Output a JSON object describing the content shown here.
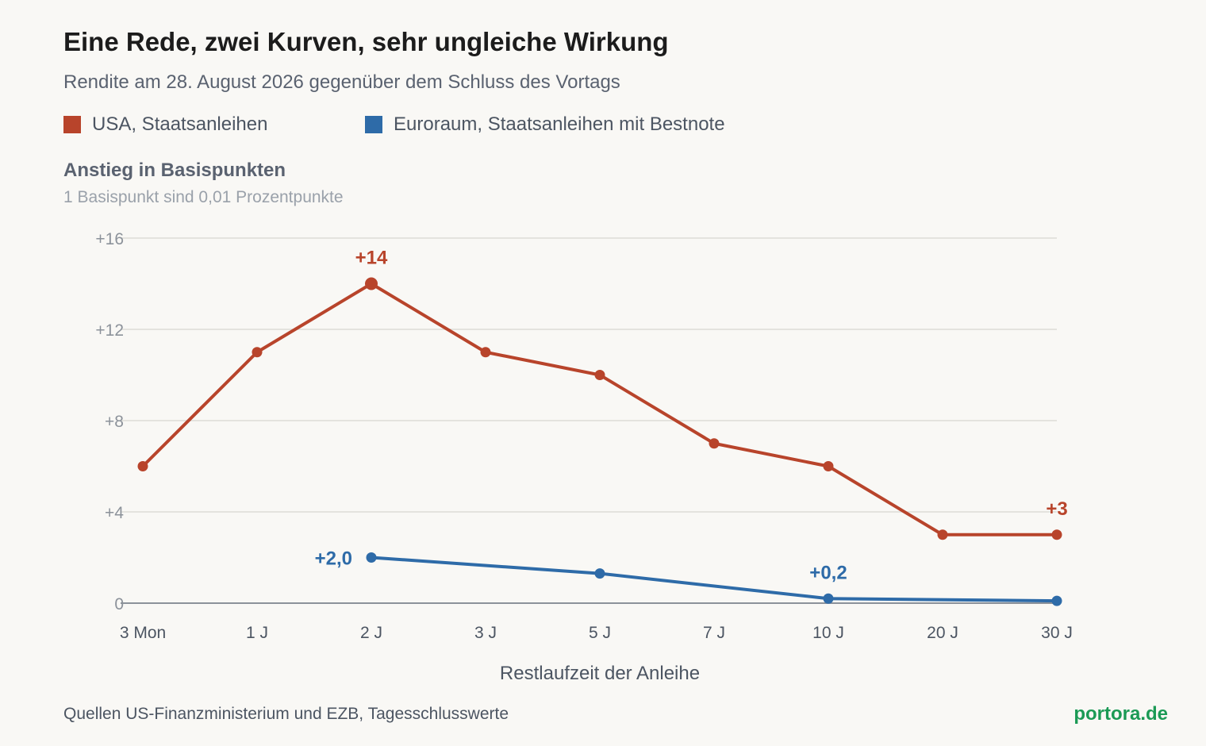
{
  "title": "Eine Rede, zwei Kurven, sehr ungleiche Wirkung",
  "subtitle": "Rendite am 28. August 2026 gegenüber dem Schluss des Vortags",
  "axis_title": "Anstieg in Basispunkten",
  "axis_note": "1 Basispunkt sind 0,01 Prozentpunkte",
  "source": "Quellen US-Finanzministerium und EZB, Tagesschlusswerte",
  "brand": "portora.de",
  "colors": {
    "usa": "#b8442b",
    "euro": "#2e6ba8",
    "grid": "#dddcd7",
    "baseline": "#8c929a",
    "tick_text": "#8c929a",
    "x_tick_text": "#4c5562"
  },
  "chart_data": {
    "type": "line",
    "categories": [
      "3 Mon",
      "1 J",
      "2 J",
      "3 J",
      "5 J",
      "7 J",
      "10 J",
      "20 J",
      "30 J"
    ],
    "xlabel": "Restlaufzeit der Anleihe",
    "ylabel": "Anstieg in Basispunkten",
    "ylim": [
      0,
      16
    ],
    "yticks": [
      16,
      12,
      8,
      4,
      0
    ],
    "ytick_labels": [
      "+16",
      "+12",
      "+8",
      "+4",
      "0"
    ],
    "grid": true,
    "legend": "top-left",
    "series": [
      {
        "name": "USA, Staatsanleihen",
        "color_key": "usa",
        "values": [
          6,
          11,
          14,
          11,
          10,
          7,
          6,
          3,
          3
        ],
        "annotations": [
          {
            "index": 2,
            "label": "+14",
            "position": "above"
          },
          {
            "index": 8,
            "label": "+3",
            "position": "above"
          }
        ]
      },
      {
        "name": "Euroraum, Staatsanleihen mit Bestnote",
        "color_key": "euro",
        "values": [
          null,
          null,
          2.0,
          null,
          1.3,
          null,
          0.2,
          null,
          0.1
        ],
        "annotations": [
          {
            "index": 2,
            "label": "+2,0",
            "position": "left"
          },
          {
            "index": 6,
            "label": "+0,2",
            "position": "above"
          }
        ]
      }
    ]
  }
}
